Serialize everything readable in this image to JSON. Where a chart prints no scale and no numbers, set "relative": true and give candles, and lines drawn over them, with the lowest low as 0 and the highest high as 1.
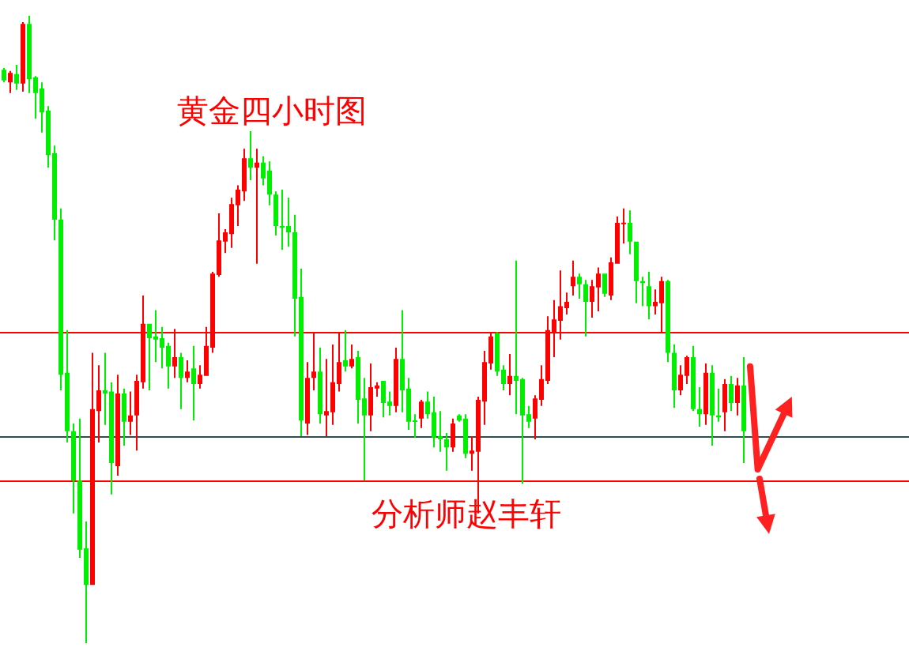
{
  "chart_data": {
    "type": "candlestick",
    "relative": true,
    "tick_labels": false,
    "title": "黄金四小时图",
    "annotations": [
      "分析师赵丰轩"
    ],
    "categories": [
      null,
      null,
      null,
      null,
      null,
      null,
      null,
      null,
      null,
      null,
      null,
      null,
      null,
      null,
      null,
      null,
      null,
      null,
      null,
      null,
      null,
      null,
      null,
      null,
      null,
      null,
      null,
      null,
      null,
      null,
      null,
      null,
      null,
      null,
      null,
      null,
      null,
      null,
      null,
      null,
      null,
      null,
      null,
      null,
      null,
      null,
      null,
      null,
      null,
      null,
      null,
      null,
      null,
      null,
      null,
      null,
      null,
      null,
      null,
      null,
      null,
      null,
      null,
      null,
      null,
      null,
      null,
      null,
      null,
      null,
      null,
      null,
      null,
      null,
      null,
      null,
      null,
      null,
      null,
      null,
      null,
      null,
      null,
      null,
      null,
      null,
      null,
      null,
      null,
      null,
      null,
      null,
      null,
      null,
      null,
      null,
      null,
      null,
      null,
      null,
      null,
      null,
      null,
      null,
      null,
      null,
      null,
      null,
      null,
      null,
      null,
      null,
      null,
      null,
      null,
      null,
      null,
      null
    ],
    "ohlc": [
      [
        0.914,
        0.917,
        0.894,
        0.897
      ],
      [
        0.894,
        0.912,
        0.877,
        0.909
      ],
      [
        0.907,
        0.922,
        0.882,
        0.892
      ],
      [
        0.892,
        0.99,
        0.879,
        0.987
      ],
      [
        0.987,
        1,
        0.877,
        0.899
      ],
      [
        0.902,
        0.904,
        0.836,
        0.877
      ],
      [
        0.884,
        0.894,
        0.814,
        0.846
      ],
      [
        0.849,
        0.856,
        0.758,
        0.778
      ],
      [
        0.781,
        0.793,
        0.642,
        0.675
      ],
      [
        0.675,
        0.693,
        0.403,
        0.428
      ],
      [
        0.431,
        0.499,
        0.32,
        0.338
      ],
      [
        0.338,
        0.35,
        0.207,
        0.259
      ],
      [
        0.259,
        0.358,
        0.136,
        0.149
      ],
      [
        0.151,
        0.194,
        0,
        0.093
      ],
      [
        0.093,
        0.463,
        0.093,
        0.373
      ],
      [
        0.37,
        0.443,
        0.32,
        0.403
      ],
      [
        0.403,
        0.463,
        0.348,
        0.398
      ],
      [
        0.401,
        0.416,
        0.237,
        0.287
      ],
      [
        0.282,
        0.428,
        0.267,
        0.398
      ],
      [
        0.398,
        0.406,
        0.315,
        0.353
      ],
      [
        0.353,
        0.401,
        0.332,
        0.363
      ],
      [
        0.363,
        0.428,
        0.307,
        0.418
      ],
      [
        0.416,
        0.554,
        0.406,
        0.509
      ],
      [
        0.509,
        0.509,
        0.403,
        0.486
      ],
      [
        0.489,
        0.531,
        0.448,
        0.484
      ],
      [
        0.486,
        0.504,
        0.438,
        0.471
      ],
      [
        0.474,
        0.479,
        0.406,
        0.441
      ],
      [
        0.441,
        0.501,
        0.423,
        0.456
      ],
      [
        0.456,
        0.463,
        0.373,
        0.423
      ],
      [
        0.423,
        0.451,
        0.416,
        0.433
      ],
      [
        0.438,
        0.474,
        0.355,
        0.413
      ],
      [
        0.413,
        0.443,
        0.406,
        0.428
      ],
      [
        0.426,
        0.504,
        0.426,
        0.474
      ],
      [
        0.471,
        0.592,
        0.463,
        0.589
      ],
      [
        0.587,
        0.685,
        0.584,
        0.642
      ],
      [
        0.64,
        0.66,
        0.622,
        0.655
      ],
      [
        0.652,
        0.71,
        0.63,
        0.7
      ],
      [
        0.698,
        0.73,
        0.665,
        0.723
      ],
      [
        0.72,
        0.788,
        0.705,
        0.773
      ],
      [
        0.773,
        0.816,
        0.738,
        0.758
      ],
      [
        0.758,
        0.788,
        0.605,
        0.766
      ],
      [
        0.766,
        0.776,
        0.73,
        0.741
      ],
      [
        0.753,
        0.768,
        0.698,
        0.715
      ],
      [
        0.715,
        0.72,
        0.65,
        0.665
      ],
      [
        0.665,
        0.723,
        0.627,
        0.662
      ],
      [
        0.665,
        0.71,
        0.632,
        0.655
      ],
      [
        0.655,
        0.683,
        0.489,
        0.549
      ],
      [
        0.552,
        0.597,
        0.33,
        0.355
      ],
      [
        0.35,
        0.448,
        0.332,
        0.423
      ],
      [
        0.423,
        0.494,
        0.403,
        0.433
      ],
      [
        0.433,
        0.471,
        0.35,
        0.365
      ],
      [
        0.363,
        0.453,
        0.33,
        0.37
      ],
      [
        0.368,
        0.476,
        0.348,
        0.416
      ],
      [
        0.413,
        0.494,
        0.401,
        0.448
      ],
      [
        0.451,
        0.499,
        0.433,
        0.441
      ],
      [
        0.441,
        0.476,
        0.438,
        0.453
      ],
      [
        0.456,
        0.466,
        0.35,
        0.388
      ],
      [
        0.39,
        0.423,
        0.259,
        0.363
      ],
      [
        0.363,
        0.446,
        0.338,
        0.408
      ],
      [
        0.406,
        0.416,
        0.393,
        0.411
      ],
      [
        0.418,
        0.418,
        0.36,
        0.383
      ],
      [
        0.385,
        0.401,
        0.363,
        0.378
      ],
      [
        0.378,
        0.471,
        0.368,
        0.453
      ],
      [
        0.453,
        0.531,
        0.368,
        0.403
      ],
      [
        0.406,
        0.423,
        0.34,
        0.353
      ],
      [
        0.355,
        0.365,
        0.327,
        0.353
      ],
      [
        0.358,
        0.388,
        0.343,
        0.385
      ],
      [
        0.385,
        0.401,
        0.358,
        0.365
      ],
      [
        0.368,
        0.393,
        0.312,
        0.327
      ],
      [
        0.33,
        0.37,
        0.305,
        0.325
      ],
      [
        0.325,
        0.335,
        0.275,
        0.312
      ],
      [
        0.312,
        0.358,
        0.305,
        0.35
      ],
      [
        0.363,
        0.365,
        0.353,
        0.355
      ],
      [
        0.358,
        0.365,
        0.295,
        0.302
      ],
      [
        0.302,
        0.33,
        0.275,
        0.307
      ],
      [
        0.305,
        0.393,
        0.207,
        0.388
      ],
      [
        0.385,
        0.466,
        0.348,
        0.448
      ],
      [
        0.446,
        0.496,
        0.436,
        0.489
      ],
      [
        0.494,
        0.496,
        0.426,
        0.433
      ],
      [
        0.436,
        0.443,
        0.403,
        0.413
      ],
      [
        0.413,
        0.461,
        0.395,
        0.426
      ],
      [
        0.426,
        0.61,
        0.365,
        0.418
      ],
      [
        0.421,
        0.423,
        0.254,
        0.363
      ],
      [
        0.365,
        0.378,
        0.343,
        0.353
      ],
      [
        0.358,
        0.395,
        0.325,
        0.39
      ],
      [
        0.388,
        0.443,
        0.378,
        0.421
      ],
      [
        0.418,
        0.521,
        0.413,
        0.499
      ],
      [
        0.496,
        0.547,
        0.456,
        0.516
      ],
      [
        0.514,
        0.594,
        0.484,
        0.537
      ],
      [
        0.534,
        0.559,
        0.524,
        0.544
      ],
      [
        0.569,
        0.61,
        0.554,
        0.584
      ],
      [
        0.584,
        0.589,
        0.549,
        0.572
      ],
      [
        0.572,
        0.579,
        0.489,
        0.544
      ],
      [
        0.544,
        0.579,
        0.519,
        0.569
      ],
      [
        0.567,
        0.599,
        0.529,
        0.589
      ],
      [
        0.589,
        0.589,
        0.552,
        0.557
      ],
      [
        0.554,
        0.615,
        0.547,
        0.607
      ],
      [
        0.605,
        0.68,
        0.605,
        0.67
      ],
      [
        0.668,
        0.693,
        0.637,
        0.67
      ],
      [
        0.67,
        0.69,
        0.62,
        0.64
      ],
      [
        0.64,
        0.64,
        0.542,
        0.577
      ],
      [
        0.577,
        0.584,
        0.537,
        0.574
      ],
      [
        0.569,
        0.592,
        0.516,
        0.537
      ],
      [
        0.537,
        0.564,
        0.524,
        0.544
      ],
      [
        0.542,
        0.584,
        0.496,
        0.577
      ],
      [
        0.577,
        0.579,
        0.448,
        0.463
      ],
      [
        0.463,
        0.476,
        0.375,
        0.403
      ],
      [
        0.403,
        0.443,
        0.395,
        0.428
      ],
      [
        0.426,
        0.458,
        0.413,
        0.456
      ],
      [
        0.456,
        0.474,
        0.37,
        0.373
      ],
      [
        0.373,
        0.408,
        0.345,
        0.365
      ],
      [
        0.365,
        0.446,
        0.348,
        0.431
      ],
      [
        0.431,
        0.443,
        0.315,
        0.363
      ],
      [
        0.363,
        0.406,
        0.353,
        0.36
      ],
      [
        0.368,
        0.421,
        0.338,
        0.413
      ],
      [
        0.413,
        0.426,
        0.37,
        0.383
      ],
      [
        0.383,
        0.423,
        0.363,
        0.411
      ],
      [
        0.411,
        0.456,
        0.287,
        0.338
      ]
    ],
    "colors": [
      "#00ee00",
      "#ff0000",
      "#00ee00",
      "#ff0000",
      "#00ee00",
      "#00ee00",
      "#00ee00",
      "#00ee00",
      "#00ee00",
      "#00ee00",
      "#00ee00",
      "#00ee00",
      "#00ee00",
      "#00ee00",
      "#ff0000",
      "#ff0000",
      "#00ee00",
      "#00ee00",
      "#ff0000",
      "#00ee00",
      "#ff0000",
      "#ff0000",
      "#ff0000",
      "#00ee00",
      "#00ee00",
      "#00ee00",
      "#00ee00",
      "#ff0000",
      "#00ee00",
      "#ff0000",
      "#00ee00",
      "#ff0000",
      "#ff0000",
      "#ff0000",
      "#ff0000",
      "#ff0000",
      "#ff0000",
      "#ff0000",
      "#ff0000",
      "#00ee00",
      "#ff0000",
      "#00ee00",
      "#00ee00",
      "#00ee00",
      "#00ee00",
      "#00ee00",
      "#00ee00",
      "#00ee00",
      "#ff0000",
      "#ff0000",
      "#00ee00",
      "#ff0000",
      "#ff0000",
      "#ff0000",
      "#00ee00",
      "#ff0000",
      "#00ee00",
      "#00ee00",
      "#ff0000",
      "#ff0000",
      "#00ee00",
      "#00ee00",
      "#ff0000",
      "#00ee00",
      "#00ee00",
      "#00ee00",
      "#ff0000",
      "#00ee00",
      "#00ee00",
      "#00ee00",
      "#00ee00",
      "#ff0000",
      "#00ee00",
      "#00ee00",
      "#ff0000",
      "#ff0000",
      "#ff0000",
      "#ff0000",
      "#00ee00",
      "#00ee00",
      "#ff0000",
      "#00ee00",
      "#00ee00",
      "#00ee00",
      "#ff0000",
      "#ff0000",
      "#ff0000",
      "#ff0000",
      "#ff0000",
      "#ff0000",
      "#ff0000",
      "#00ee00",
      "#00ee00",
      "#ff0000",
      "#ff0000",
      "#00ee00",
      "#ff0000",
      "#ff0000",
      "#ff0000",
      "#00ee00",
      "#00ee00",
      "#00ee00",
      "#00ee00",
      "#ff0000",
      "#ff0000",
      "#00ee00",
      "#00ee00",
      "#ff0000",
      "#ff0000",
      "#00ee00",
      "#00ee00",
      "#ff0000",
      "#00ee00",
      "#00ee00",
      "#ff0000",
      "#00ee00",
      "#ff0000",
      "#00ee00"
    ],
    "ref_lines": [
      {
        "axis": "y",
        "value": 0.496,
        "color": "#ff0000"
      },
      {
        "axis": "y",
        "value": 0.33,
        "color": "#2f4f4f"
      },
      {
        "axis": "y",
        "value": 0.259,
        "color": "#ff0000"
      }
    ]
  }
}
